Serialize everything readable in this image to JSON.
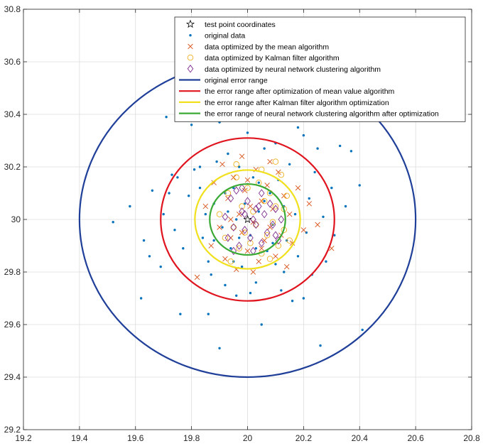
{
  "chart_data": {
    "type": "scatter",
    "xlim": [
      19.2,
      20.8
    ],
    "ylim": [
      29.2,
      30.8
    ],
    "xticks": [
      "19.2",
      "19.4",
      "19.6",
      "19.8",
      "20",
      "20.2",
      "20.4",
      "20.6",
      "20.8"
    ],
    "yticks": [
      "29.2",
      "29.4",
      "29.6",
      "29.8",
      "30",
      "30.2",
      "30.4",
      "30.6",
      "30.8"
    ],
    "grid": true,
    "legend_position": "top-right",
    "colors": {
      "blue_dot": "#0072BD",
      "mean_x": "#D95319",
      "kalman_o": "#EDB120",
      "nn_diamond": "#7E2F8E",
      "ring_original": "#1f3f99",
      "ring_mean": "#e0141e",
      "ring_kalman": "#f0e01e",
      "ring_nn": "#3aaa35"
    },
    "test_point": {
      "x": 20.0,
      "y": 30.0
    },
    "error_ranges": [
      {
        "name": "original error range",
        "cx": 20.0,
        "cy": 30.0,
        "r": 0.6,
        "color": "#1f3f99"
      },
      {
        "name": "the error range after optimization of mean value algorithm",
        "cx": 20.0,
        "cy": 30.0,
        "r": 0.31,
        "color": "#e0141e"
      },
      {
        "name": "the error range after Kalman filter algorithm optimization",
        "cx": 20.0,
        "cy": 30.0,
        "r": 0.188,
        "color": "#f0e01e"
      },
      {
        "name": "the error range of neural network clustering algorithm after optimization",
        "cx": 20.0,
        "cy": 30.0,
        "r": 0.135,
        "color": "#3aaa35"
      }
    ],
    "legend": [
      {
        "label": "test point coordinates",
        "kind": "star",
        "color": "#000000"
      },
      {
        "label": "original data",
        "kind": "dot",
        "color": "#0072BD"
      },
      {
        "label": "data optimized by the mean algorithm",
        "kind": "x",
        "color": "#D95319"
      },
      {
        "label": "data optimized by Kalman filter algorithm",
        "kind": "circle",
        "color": "#EDB120"
      },
      {
        "label": "data optimized by neural network clustering algorithm",
        "kind": "diamond",
        "color": "#7E2F8E"
      },
      {
        "label": "original error range",
        "kind": "line",
        "color": "#1f3f99"
      },
      {
        "label": "the error range after optimization of mean value algorithm",
        "kind": "line",
        "color": "#e0141e"
      },
      {
        "label": "the error range after Kalman filter algorithm optimization",
        "kind": "line",
        "color": "#f0e01e"
      },
      {
        "label": "the error range of neural network clustering algorithm after optimization",
        "kind": "line",
        "color": "#3aaa35"
      }
    ],
    "series": [
      {
        "name": "original data",
        "marker": "dot",
        "color": "#0072BD",
        "points": [
          [
            19.52,
            29.99
          ],
          [
            19.62,
            29.7
          ],
          [
            19.65,
            29.86
          ],
          [
            19.63,
            29.92
          ],
          [
            19.69,
            29.82
          ],
          [
            19.7,
            30.02
          ],
          [
            19.72,
            30.1
          ],
          [
            19.73,
            30.17
          ],
          [
            19.71,
            30.39
          ],
          [
            19.75,
            30.16
          ],
          [
            19.76,
            29.64
          ],
          [
            19.77,
            29.89
          ],
          [
            19.79,
            30.09
          ],
          [
            19.8,
            30.36
          ],
          [
            19.83,
            30.12
          ],
          [
            19.83,
            30.2
          ],
          [
            19.84,
            29.93
          ],
          [
            19.85,
            30.02
          ],
          [
            19.86,
            29.84
          ],
          [
            19.86,
            29.64
          ],
          [
            19.87,
            29.79
          ],
          [
            19.88,
            30.06
          ],
          [
            19.89,
            30.22
          ],
          [
            19.9,
            30.37
          ],
          [
            19.91,
            29.97
          ],
          [
            19.92,
            29.75
          ],
          [
            19.93,
            30.25
          ],
          [
            19.94,
            29.89
          ],
          [
            19.95,
            30.12
          ],
          [
            19.96,
            29.71
          ],
          [
            19.96,
            30.0
          ],
          [
            19.97,
            30.2
          ],
          [
            19.98,
            29.82
          ],
          [
            19.99,
            30.06
          ],
          [
            20.0,
            30.33
          ],
          [
            20.01,
            29.94
          ],
          [
            20.02,
            30.16
          ],
          [
            20.03,
            29.76
          ],
          [
            20.04,
            30.03
          ],
          [
            20.05,
            29.6
          ],
          [
            20.06,
            30.27
          ],
          [
            20.07,
            29.88
          ],
          [
            20.08,
            30.1
          ],
          [
            20.09,
            29.98
          ],
          [
            20.1,
            30.29
          ],
          [
            20.1,
            29.83
          ],
          [
            20.11,
            30.15
          ],
          [
            20.12,
            29.73
          ],
          [
            20.13,
            30.05
          ],
          [
            20.14,
            29.92
          ],
          [
            20.15,
            30.21
          ],
          [
            20.16,
            29.69
          ],
          [
            20.17,
            30.02
          ],
          [
            20.18,
            29.86
          ],
          [
            20.2,
            30.32
          ],
          [
            20.21,
            29.95
          ],
          [
            20.22,
            30.08
          ],
          [
            20.23,
            29.79
          ],
          [
            20.25,
            30.27
          ],
          [
            20.26,
            29.52
          ],
          [
            20.27,
            30.01
          ],
          [
            20.28,
            29.84
          ],
          [
            20.3,
            30.12
          ],
          [
            20.31,
            29.94
          ],
          [
            20.33,
            30.28
          ],
          [
            20.35,
            30.05
          ],
          [
            20.37,
            30.26
          ],
          [
            20.4,
            30.13
          ],
          [
            20.41,
            29.58
          ],
          [
            19.9,
            29.51
          ],
          [
            19.58,
            30.05
          ],
          [
            19.66,
            30.11
          ],
          [
            20.18,
            30.35
          ],
          [
            19.97,
            29.93
          ],
          [
            20.03,
            29.89
          ],
          [
            19.93,
            30.03
          ],
          [
            20.06,
            30.07
          ],
          [
            19.95,
            29.84
          ],
          [
            20.09,
            29.91
          ],
          [
            19.92,
            30.1
          ],
          [
            20.04,
            30.14
          ],
          [
            20.01,
            29.72
          ],
          [
            19.88,
            29.92
          ],
          [
            20.13,
            29.8
          ],
          [
            19.81,
            30.19
          ],
          [
            20.2,
            29.7
          ],
          [
            19.74,
            29.96
          ],
          [
            20.24,
            30.18
          ]
        ]
      },
      {
        "name": "data optimized by the mean algorithm",
        "marker": "x",
        "color": "#D95319",
        "points": [
          [
            19.82,
            29.78
          ],
          [
            19.85,
            30.05
          ],
          [
            19.87,
            29.9
          ],
          [
            19.88,
            30.14
          ],
          [
            19.9,
            29.97
          ],
          [
            19.91,
            30.21
          ],
          [
            19.92,
            29.85
          ],
          [
            19.93,
            30.08
          ],
          [
            19.94,
            29.93
          ],
          [
            19.95,
            30.16
          ],
          [
            19.96,
            29.81
          ],
          [
            19.97,
            30.02
          ],
          [
            19.98,
            29.95
          ],
          [
            19.99,
            30.11
          ],
          [
            20.0,
            29.88
          ],
          [
            20.01,
            30.05
          ],
          [
            20.02,
            29.99
          ],
          [
            20.03,
            30.19
          ],
          [
            20.04,
            29.84
          ],
          [
            20.05,
            30.07
          ],
          [
            20.06,
            29.92
          ],
          [
            20.07,
            30.13
          ],
          [
            20.08,
            29.97
          ],
          [
            20.09,
            30.04
          ],
          [
            20.1,
            29.86
          ],
          [
            20.11,
            30.18
          ],
          [
            20.12,
            29.94
          ],
          [
            20.13,
            30.09
          ],
          [
            20.14,
            29.82
          ],
          [
            20.15,
            30.02
          ],
          [
            20.16,
            29.91
          ],
          [
            20.18,
            30.12
          ],
          [
            20.2,
            29.96
          ],
          [
            20.22,
            30.06
          ],
          [
            20.25,
            29.98
          ],
          [
            20.3,
            29.89
          ],
          [
            20.08,
            30.22
          ],
          [
            19.98,
            30.24
          ],
          [
            20.02,
            29.8
          ],
          [
            19.94,
            30.0
          ],
          [
            20.05,
            29.89
          ],
          [
            20.0,
            30.15
          ]
        ]
      },
      {
        "name": "data optimized by Kalman filter algorithm",
        "marker": "circle",
        "color": "#EDB120",
        "points": [
          [
            19.9,
            30.02
          ],
          [
            19.92,
            29.93
          ],
          [
            19.93,
            30.1
          ],
          [
            19.95,
            29.97
          ],
          [
            19.96,
            30.16
          ],
          [
            19.97,
            29.89
          ],
          [
            19.98,
            30.05
          ],
          [
            19.99,
            29.95
          ],
          [
            20.0,
            30.12
          ],
          [
            20.01,
            29.91
          ],
          [
            20.02,
            30.03
          ],
          [
            20.03,
            29.98
          ],
          [
            20.04,
            30.14
          ],
          [
            20.05,
            29.87
          ],
          [
            20.06,
            30.07
          ],
          [
            20.07,
            29.94
          ],
          [
            20.08,
            30.1
          ],
          [
            20.09,
            29.99
          ],
          [
            20.1,
            30.05
          ],
          [
            20.11,
            29.9
          ],
          [
            20.12,
            30.17
          ],
          [
            20.13,
            29.96
          ],
          [
            20.14,
            30.09
          ],
          [
            20.15,
            29.92
          ],
          [
            20.05,
            30.19
          ],
          [
            19.96,
            30.21
          ],
          [
            20.1,
            30.22
          ],
          [
            19.94,
            29.84
          ],
          [
            20.08,
            29.85
          ],
          [
            20.13,
            30.04
          ]
        ]
      },
      {
        "name": "data optimized by neural network clustering algorithm",
        "marker": "diamond",
        "color": "#7E2F8E",
        "points": [
          [
            19.92,
            30.01
          ],
          [
            19.93,
            29.93
          ],
          [
            19.94,
            30.08
          ],
          [
            19.95,
            29.97
          ],
          [
            19.96,
            30.11
          ],
          [
            19.97,
            29.9
          ],
          [
            19.98,
            30.03
          ],
          [
            19.99,
            29.96
          ],
          [
            20.0,
            30.07
          ],
          [
            20.01,
            29.93
          ],
          [
            20.02,
            30.0
          ],
          [
            20.03,
            29.98
          ],
          [
            20.04,
            30.05
          ],
          [
            20.05,
            29.91
          ],
          [
            20.06,
            30.02
          ],
          [
            20.07,
            29.95
          ],
          [
            20.08,
            30.06
          ],
          [
            20.09,
            29.98
          ],
          [
            20.1,
            30.04
          ],
          [
            20.11,
            29.92
          ],
          [
            20.12,
            30.0
          ],
          [
            20.05,
            30.1
          ],
          [
            19.98,
            30.12
          ],
          [
            20.02,
            29.88
          ],
          [
            19.95,
            29.88
          ],
          [
            20.1,
            29.94
          ],
          [
            19.99,
            30.02
          ],
          [
            20.03,
            30.04
          ]
        ]
      }
    ]
  }
}
